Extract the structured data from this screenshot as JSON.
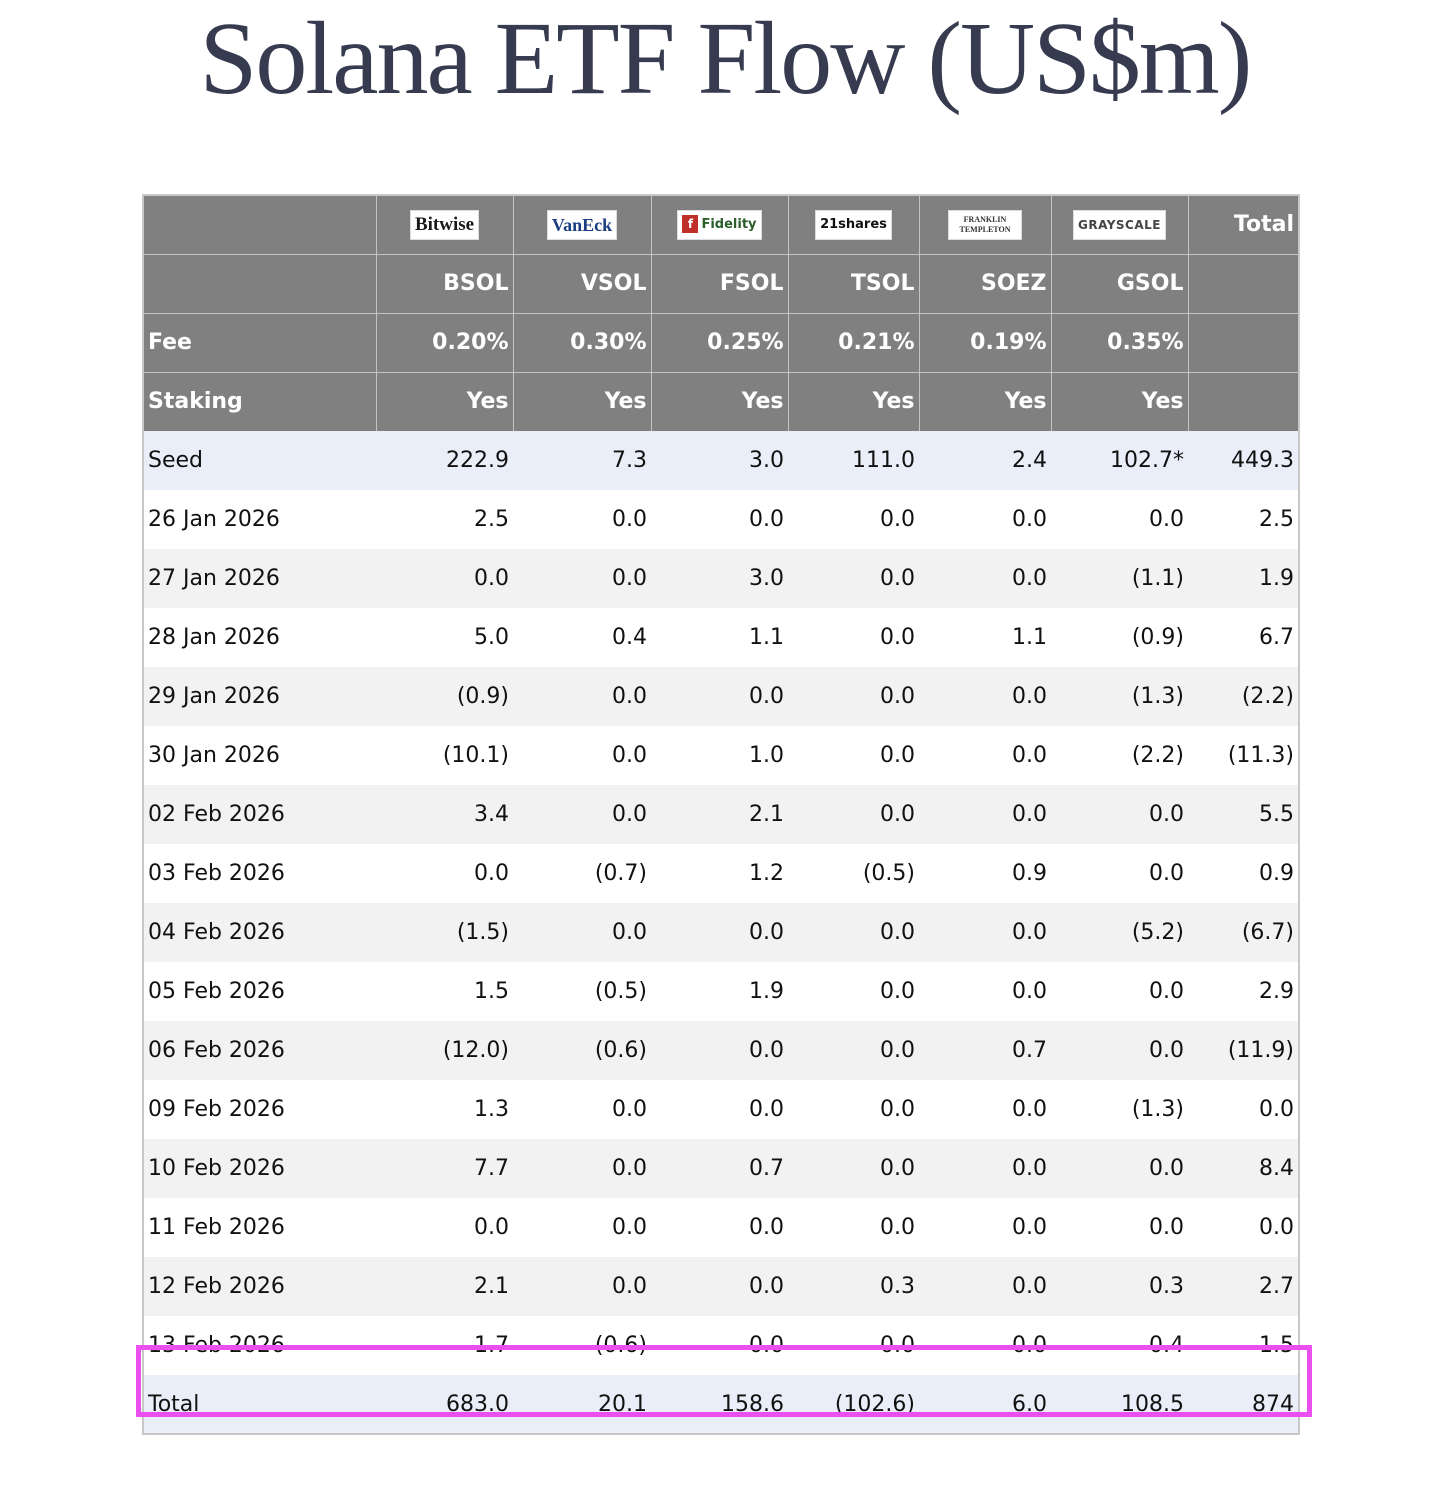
{
  "title": "Solana ETF Flow (US$m)",
  "issuers": [
    {
      "name": "Bitwise",
      "ticker": "BSOL",
      "fee": "0.20%",
      "staking": "Yes"
    },
    {
      "name": "VanEck",
      "ticker": "VSOL",
      "fee": "0.30%",
      "staking": "Yes"
    },
    {
      "name": "Fidelity",
      "ticker": "FSOL",
      "fee": "0.25%",
      "staking": "Yes"
    },
    {
      "name": "21shares",
      "ticker": "TSOL",
      "fee": "0.21%",
      "staking": "Yes"
    },
    {
      "name": "FRANKLIN TEMPLETON",
      "ticker": "SOEZ",
      "fee": "0.19%",
      "staking": "Yes"
    },
    {
      "name": "GRAYSCALE",
      "ticker": "GSOL",
      "fee": "0.35%",
      "staking": "Yes"
    }
  ],
  "header": {
    "total": "Total",
    "fee": "Fee",
    "staking": "Staking"
  },
  "rows": [
    {
      "label": "Seed",
      "values": [
        "222.9",
        "7.3",
        "3.0",
        "111.0",
        "2.4",
        "102.7*"
      ],
      "total": "449.3"
    },
    {
      "label": "26 Jan 2026",
      "values": [
        "2.5",
        "0.0",
        "0.0",
        "0.0",
        "0.0",
        "0.0"
      ],
      "total": "2.5"
    },
    {
      "label": "27 Jan 2026",
      "values": [
        "0.0",
        "0.0",
        "3.0",
        "0.0",
        "0.0",
        "(1.1)"
      ],
      "total": "1.9"
    },
    {
      "label": "28 Jan 2026",
      "values": [
        "5.0",
        "0.4",
        "1.1",
        "0.0",
        "1.1",
        "(0.9)"
      ],
      "total": "6.7"
    },
    {
      "label": "29 Jan 2026",
      "values": [
        "(0.9)",
        "0.0",
        "0.0",
        "0.0",
        "0.0",
        "(1.3)"
      ],
      "total": "(2.2)"
    },
    {
      "label": "30 Jan 2026",
      "values": [
        "(10.1)",
        "0.0",
        "1.0",
        "0.0",
        "0.0",
        "(2.2)"
      ],
      "total": "(11.3)"
    },
    {
      "label": "02 Feb 2026",
      "values": [
        "3.4",
        "0.0",
        "2.1",
        "0.0",
        "0.0",
        "0.0"
      ],
      "total": "5.5"
    },
    {
      "label": "03 Feb 2026",
      "values": [
        "0.0",
        "(0.7)",
        "1.2",
        "(0.5)",
        "0.9",
        "0.0"
      ],
      "total": "0.9"
    },
    {
      "label": "04 Feb 2026",
      "values": [
        "(1.5)",
        "0.0",
        "0.0",
        "0.0",
        "0.0",
        "(5.2)"
      ],
      "total": "(6.7)"
    },
    {
      "label": "05 Feb 2026",
      "values": [
        "1.5",
        "(0.5)",
        "1.9",
        "0.0",
        "0.0",
        "0.0"
      ],
      "total": "2.9"
    },
    {
      "label": "06 Feb 2026",
      "values": [
        "(12.0)",
        "(0.6)",
        "0.0",
        "0.0",
        "0.7",
        "0.0"
      ],
      "total": "(11.9)"
    },
    {
      "label": "09 Feb 2026",
      "values": [
        "1.3",
        "0.0",
        "0.0",
        "0.0",
        "0.0",
        "(1.3)"
      ],
      "total": "0.0"
    },
    {
      "label": "10 Feb 2026",
      "values": [
        "7.7",
        "0.0",
        "0.7",
        "0.0",
        "0.0",
        "0.0"
      ],
      "total": "8.4"
    },
    {
      "label": "11 Feb 2026",
      "values": [
        "0.0",
        "0.0",
        "0.0",
        "0.0",
        "0.0",
        "0.0"
      ],
      "total": "0.0"
    },
    {
      "label": "12 Feb 2026",
      "values": [
        "2.1",
        "0.0",
        "0.0",
        "0.3",
        "0.0",
        "0.3"
      ],
      "total": "2.7"
    },
    {
      "label": "13 Feb 2026",
      "values": [
        "1.7",
        "(0.6)",
        "0.0",
        "0.0",
        "0.0",
        "0.4"
      ],
      "total": "1.5",
      "highlighted": true
    }
  ],
  "totals": {
    "label": "Total",
    "values": [
      "683.0",
      "20.1",
      "158.6",
      "(102.6)",
      "6.0",
      "108.5"
    ],
    "total": "874"
  },
  "colors": {
    "header_bg": "#808080",
    "negative": "#d9302c",
    "highlight": "#ec4ff0",
    "seed_bg": "#eaeef8"
  }
}
